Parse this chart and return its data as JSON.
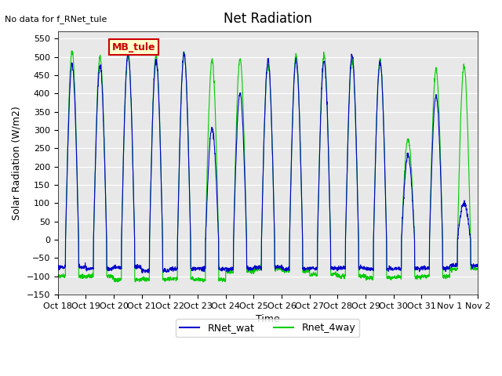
{
  "title": "Net Radiation",
  "xlabel": "Time",
  "ylabel": "Solar Radiation (W/m2)",
  "ylim": [
    -150,
    570
  ],
  "yticks": [
    -150,
    -100,
    -50,
    0,
    50,
    100,
    150,
    200,
    250,
    300,
    350,
    400,
    450,
    500,
    550
  ],
  "xtick_labels": [
    "Oct 18",
    "Oct 19",
    "Oct 20",
    "Oct 21",
    "Oct 22",
    "Oct 23",
    "Oct 24",
    "Oct 25",
    "Oct 26",
    "Oct 27",
    "Oct 28",
    "Oct 29",
    "Oct 30",
    "Oct 31",
    "Nov 1",
    "Nov 2"
  ],
  "color_blue": "#0000cc",
  "color_green": "#00cc00",
  "legend_labels": [
    "RNet_wat",
    "Rnet_4way"
  ],
  "note_text": "No data for f_RNet_tule",
  "note_color": "#000000",
  "annotation_label": "MB_tule",
  "annotation_bg": "#ffffcc",
  "annotation_border": "#cc0000",
  "bg_color": "#e8e8e8",
  "n_days": 15,
  "day_peak_blue": [
    480,
    475,
    510,
    490,
    505,
    305,
    400,
    490,
    490,
    488,
    505,
    485,
    230,
    395,
    100
  ],
  "day_peak_green": [
    515,
    500,
    505,
    505,
    510,
    490,
    495,
    480,
    505,
    505,
    490,
    490,
    275,
    465,
    475
  ],
  "night_blue": [
    -75,
    -80,
    -75,
    -85,
    -80,
    -80,
    -80,
    -75,
    -80,
    -78,
    -78,
    -80,
    -80,
    -78,
    -70
  ],
  "night_green": [
    -100,
    -100,
    -110,
    -108,
    -108,
    -110,
    -88,
    -80,
    -85,
    -95,
    -100,
    -105,
    -102,
    -100,
    -80
  ],
  "samples_per_day": 144
}
